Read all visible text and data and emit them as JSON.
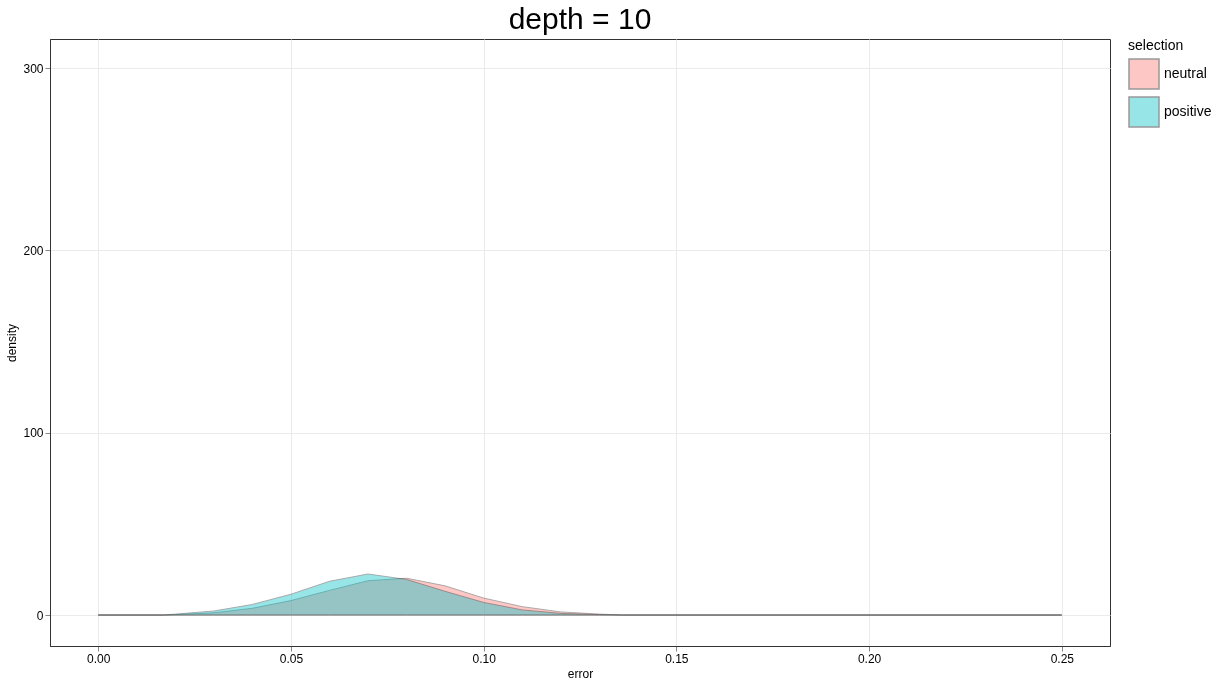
{
  "chart_data": {
    "type": "area",
    "title": "depth = 10",
    "xlabel": "error",
    "ylabel": "density",
    "legend_title": "selection",
    "x": [
      0,
      0.017,
      0.02,
      0.03,
      0.04,
      0.05,
      0.06,
      0.07,
      0.08,
      0.09,
      0.1,
      0.11,
      0.12,
      0.13,
      0.136,
      0.25
    ],
    "series": [
      {
        "name": "neutral",
        "color": "#f8766d",
        "values": [
          0,
          0,
          0.2,
          1.2,
          3.7,
          7.9,
          13.5,
          18.8,
          20.2,
          16,
          9.3,
          4.6,
          1.7,
          0.5,
          0,
          0
        ]
      },
      {
        "name": "positive",
        "color": "#00bfc4",
        "values": [
          0,
          0,
          0.5,
          2.2,
          5.8,
          11.4,
          18.5,
          22.5,
          19.5,
          13,
          6.9,
          2.8,
          0.9,
          0.2,
          0,
          0
        ]
      }
    ],
    "xlim": [
      -0.0125,
      0.2625
    ],
    "xticks": [
      {
        "value": 0,
        "label": "0.00"
      },
      0.05,
      {
        "value": 0.1,
        "label": "0.10"
      },
      0.15,
      {
        "value": 0.2,
        "label": "0.20"
      },
      0.25
    ],
    "ylim": [
      -17,
      316
    ],
    "yticks": [
      0,
      100,
      200,
      300
    ],
    "grid": true,
    "legend": "right"
  }
}
